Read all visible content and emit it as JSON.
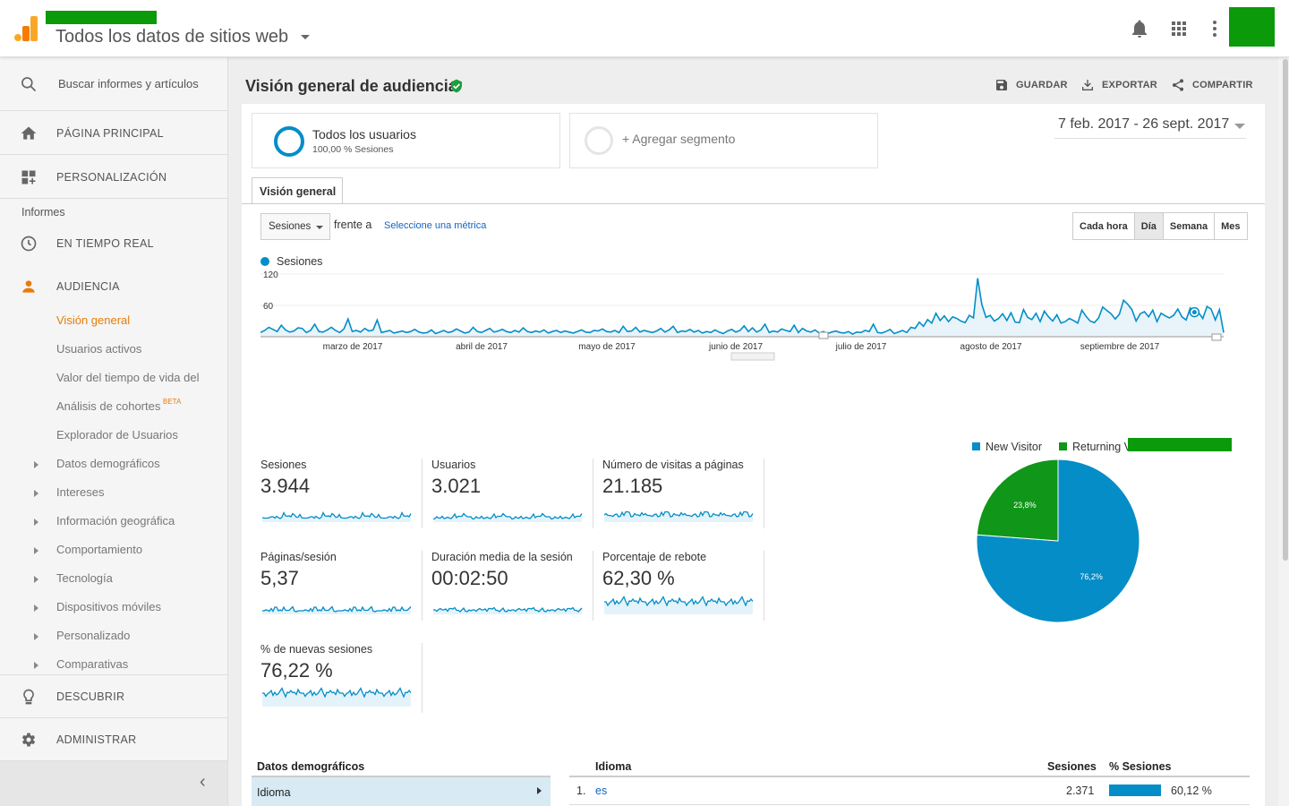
{
  "header": {
    "property_title": "Todos los datos de sitios web",
    "icons": [
      "google-analytics-logo",
      "bell-icon",
      "apps-grid-icon",
      "more-vert-icon"
    ]
  },
  "sidebar": {
    "search_placeholder": "Buscar informes y artículos",
    "home": "PÁGINA PRINCIPAL",
    "customization": "PERSONALIZACIÓN",
    "reports_heading": "Informes",
    "realtime": "EN TIEMPO REAL",
    "audience": "AUDIENCIA",
    "audience_items": [
      {
        "label": "Visión general",
        "active": true,
        "expandable": false
      },
      {
        "label": "Usuarios activos",
        "expandable": false
      },
      {
        "label": "Valor del tiempo de vida del",
        "expandable": false
      },
      {
        "label": "Análisis de cohortes",
        "badge": "BETA",
        "expandable": false
      },
      {
        "label": "Explorador de Usuarios",
        "expandable": false
      },
      {
        "label": "Datos demográficos",
        "expandable": true
      },
      {
        "label": "Intereses",
        "expandable": true
      },
      {
        "label": "Información geográfica",
        "expandable": true
      },
      {
        "label": "Comportamiento",
        "expandable": true
      },
      {
        "label": "Tecnología",
        "expandable": true
      },
      {
        "label": "Dispositivos móviles",
        "expandable": true
      },
      {
        "label": "Personalizado",
        "expandable": true
      },
      {
        "label": "Comparativas",
        "expandable": true
      }
    ],
    "discover": "DESCUBRIR",
    "admin": "ADMINISTRAR",
    "collapse_glyph": "‹"
  },
  "page": {
    "title": "Visión general de audiencia",
    "actions": {
      "save": "GUARDAR",
      "export": "EXPORTAR",
      "share": "COMPARTIR"
    },
    "segments": {
      "active_title": "Todos los usuarios",
      "active_sub": "100,00 % Sesiones",
      "add": "+ Agregar segmento"
    },
    "date_range": "7 feb. 2017 - 26 sept. 2017",
    "tab": "Visión general",
    "metric_selector": "Sesiones",
    "versus": "frente a",
    "choose_metric": "Seleccione una métrica",
    "granularity": [
      "Cada hora",
      "Día",
      "Semana",
      "Mes"
    ],
    "granularity_active": "Día",
    "accent_color": "#058dc7"
  },
  "chart_data": [
    {
      "type": "line",
      "series": [
        {
          "name": "Sesiones",
          "color": "#058dc7"
        }
      ],
      "yticks": [
        "120",
        "60"
      ],
      "ylim": [
        0,
        120
      ],
      "xtick_labels": [
        "marzo de 2017",
        "abril de 2017",
        "mayo de 2017",
        "junio de 2017",
        "julio de 2017",
        "agosto de 2017",
        "septiembre de 2017"
      ],
      "values": [
        8,
        12,
        18,
        14,
        10,
        22,
        13,
        9,
        11,
        17,
        16,
        8,
        12,
        24,
        10,
        9,
        13,
        18,
        12,
        8,
        15,
        34,
        10,
        12,
        9,
        16,
        11,
        13,
        32,
        8,
        10,
        12,
        7,
        9,
        11,
        8,
        10,
        14,
        9,
        7,
        8,
        13,
        6,
        9,
        12,
        8,
        10,
        15,
        11,
        7,
        9,
        18,
        10,
        8,
        12,
        16,
        9,
        11,
        14,
        10,
        8,
        12,
        9,
        17,
        10,
        8,
        11,
        9,
        13,
        7,
        10,
        12,
        8,
        11,
        9,
        7,
        10,
        13,
        9,
        8,
        12,
        11,
        15,
        10,
        9,
        12,
        8,
        20,
        10,
        11,
        18,
        9,
        12,
        10,
        8,
        11,
        16,
        9,
        13,
        20,
        8,
        11,
        10,
        14,
        9,
        12,
        7,
        10,
        8,
        13,
        9,
        6,
        11,
        14,
        9,
        12,
        21,
        10,
        17,
        9,
        13,
        24,
        8,
        11,
        9,
        15,
        12,
        10,
        22,
        8,
        16,
        11,
        9,
        13,
        7,
        10,
        6,
        9,
        11,
        8,
        7,
        10,
        5,
        9,
        8,
        12,
        10,
        24,
        8,
        7,
        10,
        14,
        6,
        9,
        12,
        8,
        18,
        16,
        28,
        20,
        33,
        26,
        45,
        31,
        40,
        29,
        38,
        35,
        30,
        27,
        41,
        36,
        112,
        62,
        37,
        41,
        30,
        35,
        44,
        31,
        46,
        28,
        27,
        52,
        37,
        33,
        45,
        29,
        49,
        38,
        30,
        42,
        26,
        29,
        35,
        31,
        26,
        51,
        39,
        30,
        27,
        36,
        57,
        50,
        44,
        34,
        43,
        70,
        62,
        52,
        30,
        44,
        48,
        38,
        51,
        29,
        45,
        40,
        36,
        41,
        53,
        38,
        32,
        55,
        47,
        46,
        35,
        58,
        53,
        32,
        52,
        8
      ]
    },
    {
      "type": "pie",
      "legend": [
        "New Visitor",
        "Returning V"
      ],
      "values": [
        76.2,
        23.8
      ],
      "data_labels": [
        "76,2%",
        "23,8%"
      ],
      "colors": [
        "#058dc7",
        "#109618"
      ]
    }
  ],
  "metrics": [
    {
      "label": "Sesiones",
      "value": "3.944"
    },
    {
      "label": "Usuarios",
      "value": "3.021"
    },
    {
      "label": "Número de visitas a páginas",
      "value": "21.185"
    },
    {
      "label": "Páginas/sesión",
      "value": "5,37"
    },
    {
      "label": "Duración media de la sesión",
      "value": "00:02:50"
    },
    {
      "label": "Porcentaje de rebote",
      "value": "62,30 %"
    },
    {
      "label": "% de nuevas sesiones",
      "value": "76,22 %"
    }
  ],
  "demographics": {
    "title": "Datos demográficos",
    "selected": "Idioma",
    "table": {
      "headers": {
        "dimension": "Idioma",
        "sessions": "Sesiones",
        "percent": "% Sesiones"
      },
      "rows": [
        {
          "rank": "1.",
          "name": "es",
          "sessions": "2.371",
          "percent": "60,12 %",
          "fraction": 0.6012
        }
      ]
    }
  }
}
